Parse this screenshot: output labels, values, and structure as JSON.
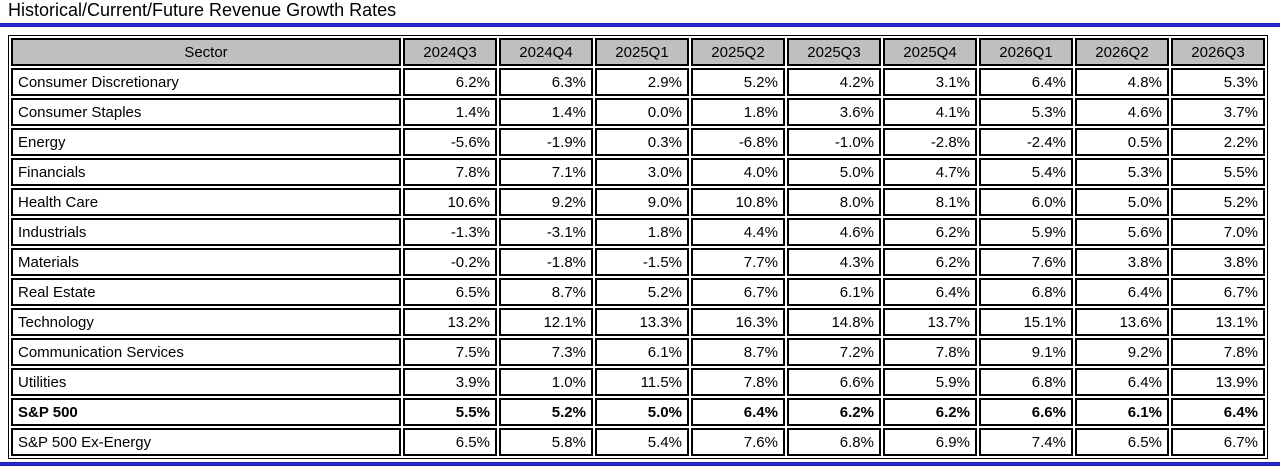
{
  "title": "Historical/Current/Future Revenue Growth Rates",
  "colors": {
    "accent_blue": "#2a2ad0",
    "header_bg": "#bfbfbf",
    "table_border": "#000000"
  },
  "chart_data": {
    "type": "table",
    "title": "Historical/Current/Future Revenue Growth Rates",
    "columns": [
      "Sector",
      "2024Q3",
      "2024Q4",
      "2025Q1",
      "2025Q2",
      "2025Q3",
      "2025Q4",
      "2026Q1",
      "2026Q2",
      "2026Q3"
    ],
    "rows": [
      {
        "sector": "Consumer Discretionary",
        "bold": false,
        "values": [
          "6.2%",
          "6.3%",
          "2.9%",
          "5.2%",
          "4.2%",
          "3.1%",
          "6.4%",
          "4.8%",
          "5.3%"
        ]
      },
      {
        "sector": "Consumer Staples",
        "bold": false,
        "values": [
          "1.4%",
          "1.4%",
          "0.0%",
          "1.8%",
          "3.6%",
          "4.1%",
          "5.3%",
          "4.6%",
          "3.7%"
        ]
      },
      {
        "sector": "Energy",
        "bold": false,
        "values": [
          "-5.6%",
          "-1.9%",
          "0.3%",
          "-6.8%",
          "-1.0%",
          "-2.8%",
          "-2.4%",
          "0.5%",
          "2.2%"
        ]
      },
      {
        "sector": "Financials",
        "bold": false,
        "values": [
          "7.8%",
          "7.1%",
          "3.0%",
          "4.0%",
          "5.0%",
          "4.7%",
          "5.4%",
          "5.3%",
          "5.5%"
        ]
      },
      {
        "sector": "Health Care",
        "bold": false,
        "values": [
          "10.6%",
          "9.2%",
          "9.0%",
          "10.8%",
          "8.0%",
          "8.1%",
          "6.0%",
          "5.0%",
          "5.2%"
        ]
      },
      {
        "sector": "Industrials",
        "bold": false,
        "values": [
          "-1.3%",
          "-3.1%",
          "1.8%",
          "4.4%",
          "4.6%",
          "6.2%",
          "5.9%",
          "5.6%",
          "7.0%"
        ]
      },
      {
        "sector": "Materials",
        "bold": false,
        "values": [
          "-0.2%",
          "-1.8%",
          "-1.5%",
          "7.7%",
          "4.3%",
          "6.2%",
          "7.6%",
          "3.8%",
          "3.8%"
        ]
      },
      {
        "sector": "Real Estate",
        "bold": false,
        "values": [
          "6.5%",
          "8.7%",
          "5.2%",
          "6.7%",
          "6.1%",
          "6.4%",
          "6.8%",
          "6.4%",
          "6.7%"
        ]
      },
      {
        "sector": "Technology",
        "bold": false,
        "values": [
          "13.2%",
          "12.1%",
          "13.3%",
          "16.3%",
          "14.8%",
          "13.7%",
          "15.1%",
          "13.6%",
          "13.1%"
        ]
      },
      {
        "sector": "Communication Services",
        "bold": false,
        "values": [
          "7.5%",
          "7.3%",
          "6.1%",
          "8.7%",
          "7.2%",
          "7.8%",
          "9.1%",
          "9.2%",
          "7.8%"
        ]
      },
      {
        "sector": "Utilities",
        "bold": false,
        "values": [
          "3.9%",
          "1.0%",
          "11.5%",
          "7.8%",
          "6.6%",
          "5.9%",
          "6.8%",
          "6.4%",
          "13.9%"
        ]
      },
      {
        "sector": "S&P 500",
        "bold": true,
        "values": [
          "5.5%",
          "5.2%",
          "5.0%",
          "6.4%",
          "6.2%",
          "6.2%",
          "6.6%",
          "6.1%",
          "6.4%"
        ]
      },
      {
        "sector": "S&P 500 Ex-Energy",
        "bold": false,
        "values": [
          "6.5%",
          "5.8%",
          "5.4%",
          "7.6%",
          "6.8%",
          "6.9%",
          "7.4%",
          "6.5%",
          "6.7%"
        ]
      }
    ]
  }
}
